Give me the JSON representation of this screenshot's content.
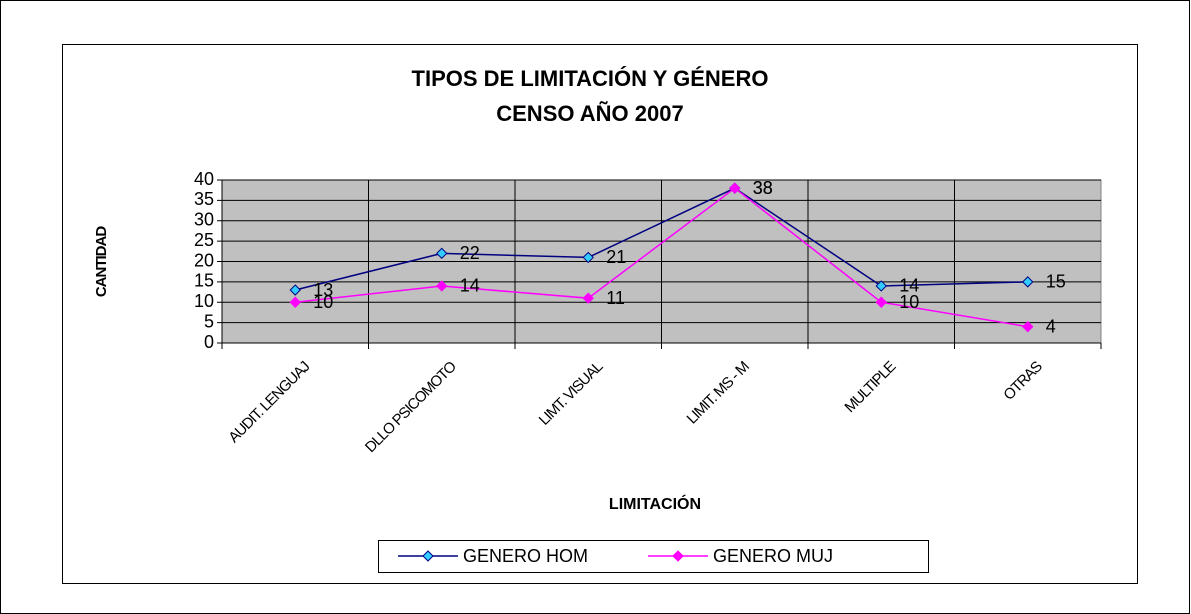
{
  "chart_data": {
    "type": "line",
    "title": "TIPOS DE LIMITACIÓN Y GÉNERO",
    "subtitle": "CENSO AÑO 2007",
    "x_label": "LIMITACIÓN",
    "y_label": "CANTIDAD",
    "categories": [
      "AUDIT. LENGUAJ",
      "DLLO PSICOMOTO",
      "LIMT. VISUAL",
      "LIMIT. MS - M",
      "MULTIPLE",
      "OTRAS"
    ],
    "series": [
      {
        "name": "GENERO HOM",
        "color": "#000080",
        "marker_color": "#33ccff",
        "values": [
          13,
          22,
          21,
          38,
          14,
          15
        ]
      },
      {
        "name": "GENERO MUJ",
        "color": "#ff00ff",
        "marker_color": "#ff00ff",
        "values": [
          10,
          14,
          11,
          38,
          10,
          4
        ]
      }
    ],
    "ylim": [
      0,
      40
    ],
    "yticks": [
      0,
      5,
      10,
      15,
      20,
      25,
      30,
      35,
      40
    ],
    "grid": true,
    "legend": "bottom"
  }
}
